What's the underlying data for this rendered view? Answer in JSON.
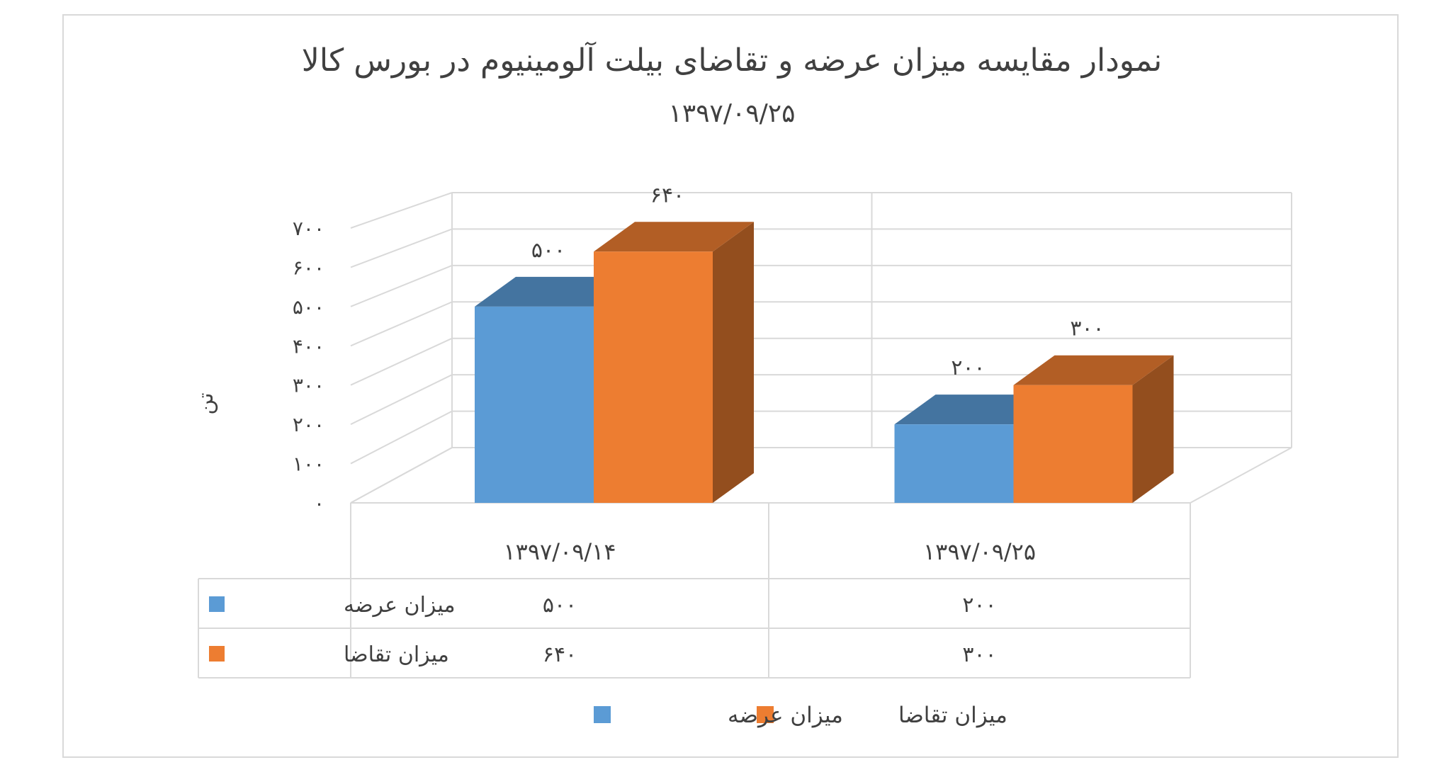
{
  "chart_data": {
    "type": "bar",
    "style": "3d-clustered-column",
    "title": "نمودار مقایسه میزان عرضه و تقاضای بیلت آلومینیوم در بورس کالا",
    "subtitle": "۱۳۹۷/۰۹/۲۵",
    "ylabel": "تن",
    "xlabel": "",
    "ylim": [
      0,
      700
    ],
    "y_ticks": [
      0,
      100,
      200,
      300,
      400,
      500,
      600,
      700
    ],
    "y_tick_labels": [
      "۰",
      "۱۰۰",
      "۲۰۰",
      "۳۰۰",
      "۴۰۰",
      "۵۰۰",
      "۶۰۰",
      "۷۰۰"
    ],
    "categories": [
      "۱۳۹۷/۰۹/۱۴",
      "۱۳۹۷/۰۹/۲۵"
    ],
    "series": [
      {
        "name": "میزان عرضه",
        "values": [
          500,
          200
        ],
        "value_labels": [
          "۵۰۰",
          "۲۰۰"
        ],
        "color": "#5b9bd5"
      },
      {
        "name": "میزان تقاضا",
        "values": [
          640,
          300
        ],
        "value_labels": [
          "۶۴۰",
          "۳۰۰"
        ],
        "color": "#ed7d31"
      }
    ],
    "grid": true,
    "legend": "bottom",
    "data_table": true
  }
}
